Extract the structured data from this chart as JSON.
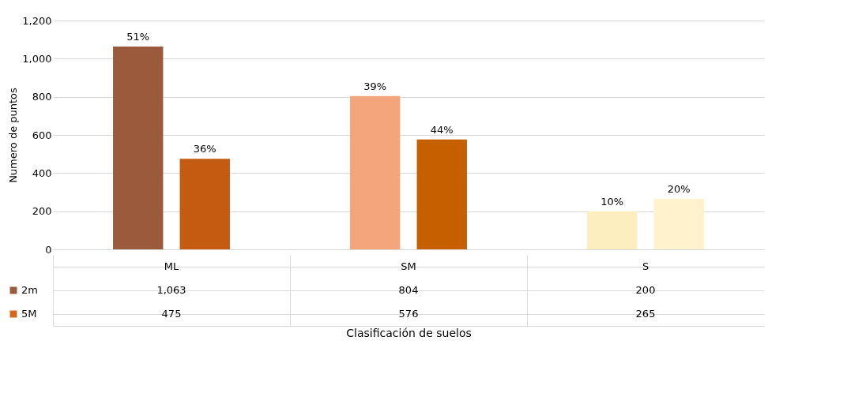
{
  "chart_data": {
    "type": "bar",
    "ylabel": "Numero de puntos",
    "xlabel": "Clasificación de suelos",
    "categories": [
      "ML",
      "SM",
      "S"
    ],
    "series": [
      {
        "name": "2m",
        "color": "#9c5a3c",
        "colors": [
          "#9c5a3c",
          "#f4a57c",
          "#fdeec0"
        ],
        "values": [
          1063,
          804,
          200
        ],
        "value_labels": [
          "1,063",
          "804",
          "200"
        ]
      },
      {
        "name": "5M",
        "color": "#d2691e",
        "colors": [
          "#c55a11",
          "#c65f00",
          "#fff2cc"
        ],
        "values": [
          475,
          576,
          265
        ],
        "value_labels": [
          "475",
          "576",
          "265"
        ]
      }
    ],
    "annotations": [
      "51%",
      "39%",
      "10%",
      "36%",
      "44%",
      "20%"
    ],
    "ylim": [
      0,
      1200
    ],
    "yticks": [
      0,
      {
        "value": 200,
        "label": "200"
      },
      {
        "value": 400,
        "label": "400"
      },
      {
        "value": 600,
        "label": "600"
      },
      {
        "value": 800,
        "label": "800"
      },
      {
        "value": 1000,
        "label": "1,000"
      },
      {
        "value": 1200,
        "label": "1,200"
      }
    ],
    "grid": "y",
    "legend": "bottom"
  }
}
